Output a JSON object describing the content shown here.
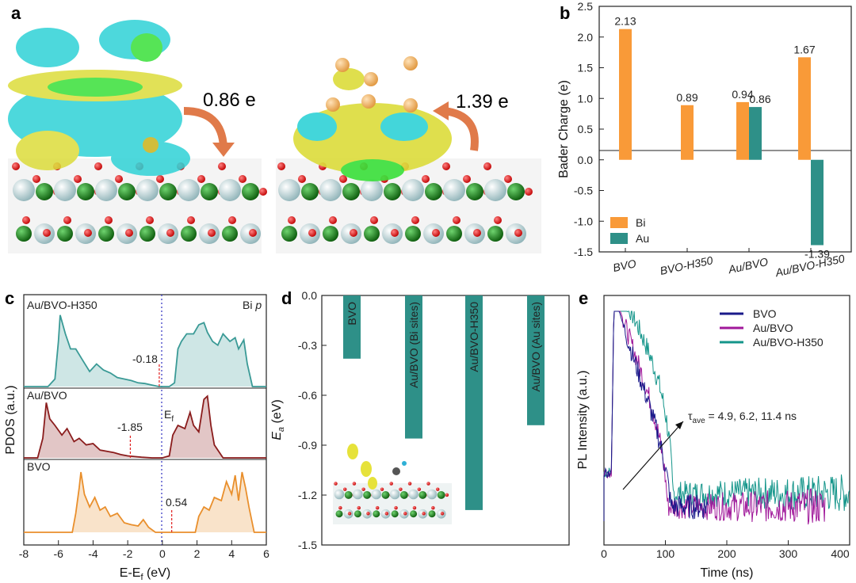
{
  "panel_labels": {
    "a": "a",
    "b": "b",
    "c": "c",
    "d": "d",
    "e": "e"
  },
  "colors": {
    "bi": "#f99a38",
    "au": "#2e9088",
    "bvo_line": "#e98f2c",
    "aubvo_line": "#8a1c1c",
    "h350_line": "#3a9a96",
    "iso_cyan": "#2fd2d6",
    "iso_yellow": "#dcdc3a",
    "pl_bvo": "#1a1a8a",
    "pl_aubvo": "#a0189a",
    "pl_h350": "#14958a",
    "arrow": "#e07a4a"
  },
  "panel_a": {
    "left_charge": "0.86 e",
    "right_charge": "1.39 e"
  },
  "chart_data": [
    {
      "id": "b",
      "type": "bar",
      "title": "",
      "categories": [
        "BVO",
        "BVO-H350",
        "Au/BVO",
        "Au/BVO-H350"
      ],
      "series": [
        {
          "name": "Bi",
          "values": [
            2.13,
            0.89,
            0.94,
            1.67
          ]
        },
        {
          "name": "Au",
          "values": [
            null,
            null,
            0.86,
            -1.39
          ]
        }
      ],
      "value_labels": {
        "Bi": [
          "2.13",
          "0.89",
          "0.94",
          "1.67"
        ],
        "Au": [
          "",
          "",
          "0.86",
          "-1.39"
        ]
      },
      "ylabel": "Bader Charge (e)",
      "xlabel": "",
      "ylim": [
        -1.5,
        2.5
      ],
      "yticks": [
        "2.5",
        "2.0",
        "1.5",
        "1.0",
        "0.5",
        "0.0",
        "-0.5",
        "-1.0",
        "-1.5"
      ],
      "legend": "bottom-left"
    },
    {
      "id": "c",
      "type": "line",
      "ylabel": "PDOS (a.u.)",
      "xlabel": "E-E",
      "xlabel_sub": "f",
      "xlabel_unit": " (eV)",
      "xlim": [
        -8,
        6
      ],
      "xticks": [
        "-8",
        "-6",
        "-4",
        "-2",
        "0",
        "2",
        "4",
        "6"
      ],
      "corner_label": "Bi ",
      "corner_label_italic": "p",
      "ef_label": "E",
      "ef_sub": "f",
      "series": [
        {
          "name": "Au/BVO-H350",
          "center_value": "-0.18",
          "center": -0.18,
          "x": [
            -8,
            -6.6,
            -6.2,
            -6.0,
            -5.9,
            -5.6,
            -5.3,
            -5.0,
            -4.6,
            -4.2,
            -3.8,
            -3.4,
            -3.0,
            -2.6,
            -2.2,
            -1.8,
            -1.4,
            -1.0,
            -0.6,
            -0.2,
            0.4,
            0.7,
            0.9,
            1.1,
            1.4,
            1.8,
            2.1,
            2.4,
            2.6,
            2.9,
            3.2,
            3.5,
            3.9,
            4.2,
            4.4,
            4.7,
            4.9,
            5.2,
            6
          ],
          "y": [
            0,
            0,
            0.1,
            0.6,
            0.95,
            0.7,
            0.5,
            0.5,
            0.35,
            0.2,
            0.3,
            0.22,
            0.18,
            0.12,
            0.1,
            0.08,
            0.05,
            0.04,
            0.02,
            0,
            0,
            0.05,
            0.5,
            0.6,
            0.7,
            0.7,
            0.82,
            0.85,
            0.72,
            0.6,
            0.55,
            0.7,
            0.6,
            0.65,
            0.5,
            0.62,
            0.3,
            0,
            0
          ]
        },
        {
          "name": "Au/BVO",
          "center_value": "-1.85",
          "center": -1.85,
          "x": [
            -8,
            -7.2,
            -6.9,
            -6.7,
            -6.5,
            -6.2,
            -5.8,
            -5.5,
            -5.1,
            -4.8,
            -4.4,
            -4.0,
            -3.6,
            -3.2,
            -2.8,
            -2.4,
            -2.0,
            -1.6,
            -1.2,
            -0.6,
            0,
            0.4,
            0.6,
            0.9,
            1.3,
            1.6,
            1.8,
            2.1,
            2.4,
            2.6,
            2.8,
            3.0,
            3.5,
            6
          ],
          "y": [
            0,
            0,
            0.3,
            0.85,
            0.6,
            0.5,
            0.35,
            0.45,
            0.25,
            0.3,
            0.2,
            0.22,
            0.12,
            0.1,
            0.08,
            0.05,
            0.03,
            0.02,
            0.01,
            0,
            0,
            0.03,
            0.35,
            0.5,
            0.45,
            0.7,
            0.5,
            0.4,
            0.9,
            0.95,
            0.5,
            0.2,
            0,
            0
          ]
        },
        {
          "name": "BVO",
          "center_value": "0.54",
          "center": 0.54,
          "x": [
            -8,
            -5.2,
            -5.0,
            -4.8,
            -4.7,
            -4.5,
            -4.2,
            -3.9,
            -3.6,
            -3.3,
            -3.0,
            -2.6,
            -2.2,
            -1.8,
            -1.4,
            -1.1,
            -0.8,
            -0.4,
            1.9,
            2.1,
            2.4,
            2.7,
            3.0,
            3.4,
            3.7,
            4.0,
            4.2,
            4.4,
            4.6,
            4.8,
            5.0,
            5.3,
            6
          ],
          "y": [
            0,
            0,
            0.3,
            0.7,
            0.95,
            0.6,
            0.4,
            0.55,
            0.35,
            0.4,
            0.25,
            0.3,
            0.15,
            0.12,
            0.1,
            0.2,
            0.08,
            0,
            0,
            0.25,
            0.4,
            0.35,
            0.55,
            0.5,
            0.8,
            0.6,
            0.9,
            0.5,
            0.95,
            0.7,
            0.4,
            0,
            0
          ]
        }
      ]
    },
    {
      "id": "d",
      "type": "bar",
      "ylabel": "E",
      "ylabel_sub": "a",
      "ylabel_unit": " (eV)",
      "ylim": [
        -1.5,
        0.0
      ],
      "yticks": [
        "0.0",
        "-0.3",
        "-0.6",
        "-0.9",
        "-1.2",
        "-1.5"
      ],
      "categories": [
        "BVO",
        "Au/BVO (Bi sites)",
        "Au/BVO-H350",
        "Au/BVO (Au sites)"
      ],
      "values": [
        -0.38,
        -0.86,
        -1.29,
        -0.78
      ]
    },
    {
      "id": "e",
      "type": "line",
      "ylabel": "PL Intensity (a.u.)",
      "xlabel": "Time (ns)",
      "xlim": [
        0,
        400
      ],
      "xticks": [
        "0",
        "100",
        "200",
        "300",
        "400"
      ],
      "annotation": "τ",
      "annotation_sub": "ave",
      "annotation_rest": " = 4.9, 6.2, 11.4 ns",
      "legend": "top-right",
      "series": [
        {
          "name": "BVO",
          "tau": 4.9
        },
        {
          "name": "Au/BVO",
          "tau": 6.2
        },
        {
          "name": "Au/BVO-H350",
          "tau": 11.4
        }
      ]
    }
  ]
}
